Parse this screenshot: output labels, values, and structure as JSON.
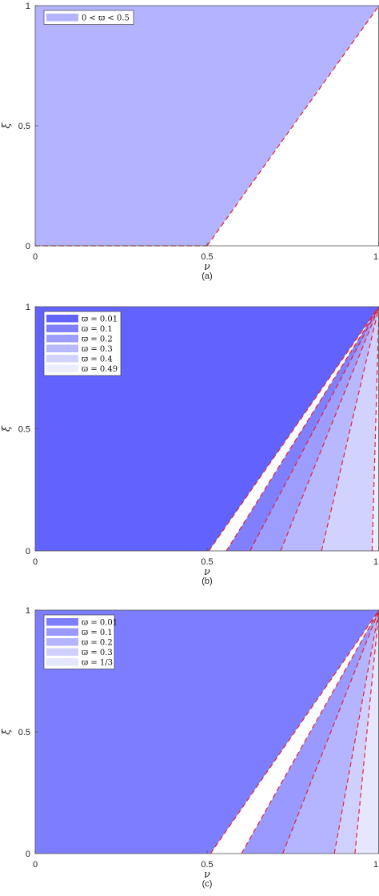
{
  "chart_data": [
    {
      "type": "area",
      "panel_label": "(a)",
      "xlabel": "ν",
      "ylabel": "ξ",
      "xlim": [
        0,
        1
      ],
      "ylim": [
        0,
        1
      ],
      "x_ticks": [
        "0",
        "0.5",
        "1"
      ],
      "y_ticks": [
        "0",
        "0.5",
        "1"
      ],
      "grid": false,
      "legend_position": "top-left",
      "boundary_style": "red dashed line",
      "regions": [
        {
          "name": "0 < ϖ < 0.5",
          "boundary_x_at_y0": 0.5,
          "boundary_x_at_y1": 1.0,
          "color": "#b3b3ff"
        }
      ]
    },
    {
      "type": "area",
      "panel_label": "(b)",
      "xlabel": "ν",
      "ylabel": "ξ",
      "xlim": [
        0,
        1
      ],
      "ylim": [
        0,
        1
      ],
      "x_ticks": [
        "0",
        "0.5",
        "1"
      ],
      "y_ticks": [
        "0",
        "0.5",
        "1"
      ],
      "grid": false,
      "legend_position": "top-left",
      "boundary_style": "red dashed line",
      "regions": [
        {
          "name": "ϖ = 0.01",
          "boundary_x_at_y0": 0.505,
          "boundary_x_at_y1": 1.0,
          "color": "#6262ff"
        },
        {
          "name": "ϖ = 0.1",
          "boundary_x_at_y0": 0.556,
          "boundary_x_at_y1": 1.0,
          "color": "#8080ff"
        },
        {
          "name": "ϖ = 0.2",
          "boundary_x_at_y0": 0.625,
          "boundary_x_at_y1": 1.0,
          "color": "#9d9dff"
        },
        {
          "name": "ϖ = 0.3",
          "boundary_x_at_y0": 0.714,
          "boundary_x_at_y1": 1.0,
          "color": "#b8b8ff"
        },
        {
          "name": "ϖ = 0.4",
          "boundary_x_at_y0": 0.833,
          "boundary_x_at_y1": 1.0,
          "color": "#d2d2ff"
        },
        {
          "name": "ϖ = 0.49",
          "boundary_x_at_y0": 0.98,
          "boundary_x_at_y1": 1.0,
          "color": "#ececff"
        }
      ]
    },
    {
      "type": "area",
      "panel_label": "(c)",
      "xlabel": "ν",
      "ylabel": "ξ",
      "xlim": [
        0,
        1
      ],
      "ylim": [
        0,
        1
      ],
      "x_ticks": [
        "0",
        "0.5",
        "1"
      ],
      "y_ticks": [
        "0",
        "0.5",
        "1"
      ],
      "grid": false,
      "legend_position": "top-left",
      "boundary_style": "red dashed line",
      "regions": [
        {
          "name": "ϖ = 0.01",
          "boundary_x_at_y0": 0.51,
          "boundary_x_at_y1": 1.0,
          "color": "#7d7dff"
        },
        {
          "name": "ϖ = 0.1",
          "boundary_x_at_y0": 0.6,
          "boundary_x_at_y1": 1.0,
          "color": "#9999ff"
        },
        {
          "name": "ϖ = 0.2",
          "boundary_x_at_y0": 0.72,
          "boundary_x_at_y1": 1.0,
          "color": "#b5b5ff"
        },
        {
          "name": "ϖ = 0.3",
          "boundary_x_at_y0": 0.87,
          "boundary_x_at_y1": 1.0,
          "color": "#d0d0ff"
        },
        {
          "name": "ϖ = 1/3",
          "boundary_x_at_y0": 0.93,
          "boundary_x_at_y1": 1.0,
          "color": "#e6e6ff"
        }
      ]
    }
  ]
}
